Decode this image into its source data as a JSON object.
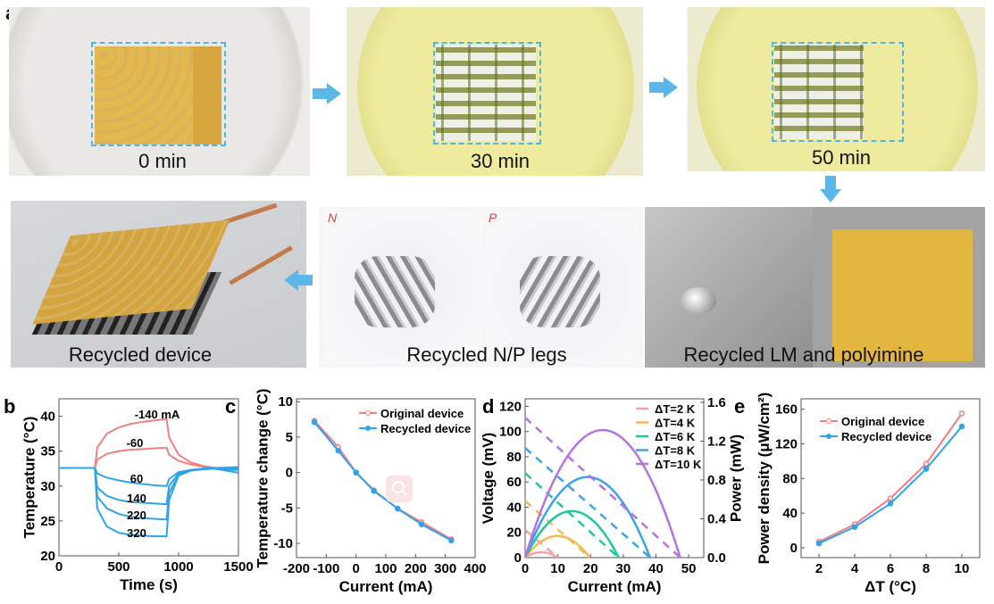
{
  "figure": {
    "panel_a_label": "a",
    "photos": {
      "min0": {
        "caption": "0 min"
      },
      "min30": {
        "caption": "30 min"
      },
      "min50": {
        "caption": "50 min"
      },
      "device": {
        "caption": "Recycled device"
      },
      "legs": {
        "caption": "Recycled N/P legs",
        "tray_labels": [
          "N",
          "P"
        ]
      },
      "lm": {
        "caption": "Recycled LM and polyimine"
      }
    },
    "colors": {
      "arrow": "#5bb6ea",
      "dashed_box": "#4fb4ea",
      "original": "#f07f80",
      "recycled": "#2ea3ea"
    }
  },
  "chart_data": [
    {
      "panel": "b",
      "type": "line",
      "xlabel": "Time (s)",
      "ylabel": "Temperature (°C)",
      "xlim": [
        0,
        1500
      ],
      "ylim": [
        20,
        42.5
      ],
      "xticks": [
        0,
        500,
        1000,
        1500
      ],
      "yticks": [
        20,
        25,
        30,
        35,
        40
      ],
      "x": [
        0,
        300,
        320,
        400,
        500,
        600,
        700,
        800,
        900,
        920,
        1000,
        1100,
        1200,
        1300,
        1500
      ],
      "series": [
        {
          "name": "-140 mA",
          "color": "#f07f80",
          "values": [
            32.6,
            32.6,
            35.5,
            37.5,
            38.4,
            38.9,
            39.2,
            39.4,
            39.6,
            37.0,
            34.5,
            33.4,
            32.9,
            32.6,
            32.5
          ]
        },
        {
          "name": "-60",
          "color": "#f07f80",
          "values": [
            32.6,
            32.6,
            33.8,
            34.6,
            35.0,
            35.2,
            35.3,
            35.4,
            35.5,
            34.5,
            33.6,
            33.1,
            32.8,
            32.6,
            32.4
          ]
        },
        {
          "name": "60",
          "color": "#2ea3ea",
          "values": [
            32.6,
            32.6,
            31.8,
            31.2,
            30.8,
            30.5,
            30.3,
            30.1,
            30.0,
            31.0,
            32.0,
            32.3,
            32.5,
            32.5,
            31.9
          ]
        },
        {
          "name": "140",
          "color": "#2ea3ea",
          "values": [
            32.6,
            32.6,
            29.8,
            28.6,
            28.0,
            27.7,
            27.6,
            27.5,
            27.4,
            30.0,
            31.8,
            32.2,
            32.4,
            32.5,
            32.3
          ]
        },
        {
          "name": "220",
          "color": "#2ea3ea",
          "values": [
            32.6,
            32.6,
            28.5,
            26.8,
            26.0,
            25.6,
            25.4,
            25.3,
            25.2,
            29.0,
            31.6,
            32.2,
            32.4,
            32.5,
            32.5
          ]
        },
        {
          "name": "320",
          "color": "#2ea3ea",
          "values": [
            32.6,
            32.6,
            26.8,
            24.2,
            23.3,
            23.0,
            22.9,
            22.8,
            22.8,
            28.0,
            31.5,
            32.2,
            32.5,
            32.6,
            32.7
          ]
        }
      ]
    },
    {
      "panel": "c",
      "type": "line",
      "xlabel": "Current (mA)",
      "ylabel": "Temperature change (°C)",
      "xlim": [
        -200,
        400
      ],
      "ylim": [
        -12,
        10.4
      ],
      "xticks": [
        -200,
        -100,
        0,
        100,
        200,
        300,
        400
      ],
      "yticks": [
        -10,
        -5,
        0,
        5,
        10
      ],
      "x": [
        -140,
        -60,
        0,
        60,
        140,
        220,
        320
      ],
      "legend": "top-right",
      "series": [
        {
          "name": "Original device",
          "color": "#f07f80",
          "values": [
            7.3,
            3.6,
            0,
            -2.5,
            -5.1,
            -7.0,
            -9.4
          ]
        },
        {
          "name": "Recycled device",
          "color": "#2ea3ea",
          "values": [
            7.1,
            3.1,
            0,
            -2.6,
            -5.1,
            -7.3,
            -9.6
          ]
        }
      ]
    },
    {
      "panel": "d",
      "type": "line",
      "xlabel": "Current (mA)",
      "ylabel": "Voltage (mV)",
      "y2label": "Power (mW)",
      "xlim": [
        0,
        54.6
      ],
      "ylim": [
        0,
        126
      ],
      "y2lim": [
        0,
        1.6
      ],
      "xticks": [
        0,
        10,
        20,
        30,
        40,
        50
      ],
      "yticks": [
        0,
        20,
        40,
        60,
        80,
        100,
        120
      ],
      "y2ticks": [
        "0.0",
        "0.4",
        "0.8",
        "1.2",
        "1.6"
      ],
      "legend": "top-right",
      "note": "dashed: voltage, solid: power",
      "series": [
        {
          "name": "ΔT=2 K",
          "color": "#f5a3a3",
          "open_circuit_voltage_mV": 22,
          "short_circuit_current_mA": 10
        },
        {
          "name": "ΔT=4 K",
          "color": "#f3b955",
          "open_circuit_voltage_mV": 45,
          "short_circuit_current_mA": 19.8
        },
        {
          "name": "ΔT=6 K",
          "color": "#1ec79b",
          "open_circuit_voltage_mV": 67,
          "short_circuit_current_mA": 28.6
        },
        {
          "name": "ΔT=8 K",
          "color": "#3ba2ee",
          "open_circuit_voltage_mV": 87,
          "short_circuit_current_mA": 38.2
        },
        {
          "name": "ΔT=10 K",
          "color": "#b572e4",
          "open_circuit_voltage_mV": 111,
          "short_circuit_current_mA": 47.4
        }
      ]
    },
    {
      "panel": "e",
      "type": "line",
      "xlabel": "ΔT (°C)",
      "ylabel": "Power density (μW/cm²)",
      "xlim": [
        1,
        11
      ],
      "ylim": [
        -11.4,
        172
      ],
      "xticks": [
        2,
        4,
        6,
        8,
        10
      ],
      "yticks": [
        0,
        40,
        80,
        120,
        160
      ],
      "x": [
        2,
        4,
        6,
        8,
        10
      ],
      "legend": "top-left",
      "series": [
        {
          "name": "Original device",
          "color": "#f07f80",
          "values": [
            7,
            27,
            57,
            97,
            155
          ]
        },
        {
          "name": "Recycled device",
          "color": "#2ea3ea",
          "values": [
            5,
            24,
            51,
            91,
            140
          ]
        }
      ]
    }
  ]
}
